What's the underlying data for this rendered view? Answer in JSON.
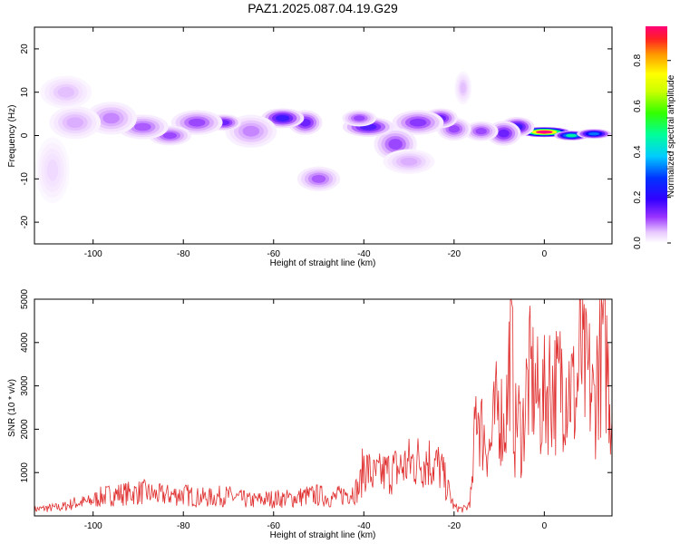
{
  "page_title": "PAZ1.2025.087.04.19.G29",
  "colors": {
    "snr_line": "#e03030",
    "axis": "#000000",
    "colormap": [
      "#ffffff",
      "#f3e0ff",
      "#d9a8ff",
      "#a44dff",
      "#6a1fff",
      "#3018ff",
      "#0000ff",
      "#0066ff",
      "#00d0ff",
      "#00ff80",
      "#33ff00",
      "#ccff00",
      "#ffff00",
      "#ff9900",
      "#ff2020",
      "#ff0080"
    ]
  },
  "chart_data": [
    {
      "type": "heatmap",
      "title": "",
      "xlabel": "Height of straight line (km)",
      "ylabel": "Frequency (Hz)",
      "xlim": [
        -113,
        15
      ],
      "ylim": [
        -25,
        25
      ],
      "x_ticks": [
        -100,
        -80,
        -60,
        -40,
        -20,
        0
      ],
      "x_tick_labels": [
        "-100",
        "-80",
        "-60",
        "-40",
        "-20",
        "0"
      ],
      "y_ticks": [
        -20,
        -10,
        0,
        10,
        20
      ],
      "y_tick_labels": [
        "-20",
        "-10",
        "0",
        "10",
        "20"
      ],
      "colorbar": {
        "label": "Normalized spectral amplitude",
        "range": [
          0.0,
          0.95
        ],
        "ticks": [
          0.0,
          0.2,
          0.4,
          0.6,
          0.8
        ],
        "tick_labels": [
          "0.0",
          "0.2",
          "0.4",
          "0.6",
          "0.8"
        ]
      },
      "blobs": [
        {
          "x": 0,
          "y": 0.8,
          "sx": 3,
          "sy": 0.6,
          "a": 0.95
        },
        {
          "x": 6,
          "y": 0,
          "sx": 2,
          "sy": 0.6,
          "a": 0.55
        },
        {
          "x": 11,
          "y": 0.4,
          "sx": 2,
          "sy": 0.6,
          "a": 0.45
        },
        {
          "x": -6,
          "y": 2,
          "sx": 2,
          "sy": 1.2,
          "a": 0.3
        },
        {
          "x": -9,
          "y": 0.5,
          "sx": 2,
          "sy": 1.5,
          "a": 0.25
        },
        {
          "x": -14,
          "y": 1,
          "sx": 2,
          "sy": 1.2,
          "a": 0.2
        },
        {
          "x": -20,
          "y": 1.5,
          "sx": 2,
          "sy": 1.4,
          "a": 0.2
        },
        {
          "x": -23,
          "y": 4,
          "sx": 2,
          "sy": 1.2,
          "a": 0.25
        },
        {
          "x": -28,
          "y": 3,
          "sx": 3,
          "sy": 1.5,
          "a": 0.22
        },
        {
          "x": -33,
          "y": -2,
          "sx": 2.5,
          "sy": 2,
          "a": 0.2
        },
        {
          "x": -39,
          "y": 2,
          "sx": 3,
          "sy": 1.2,
          "a": 0.28
        },
        {
          "x": -41,
          "y": 4,
          "sx": 2,
          "sy": 1,
          "a": 0.2
        },
        {
          "x": -50,
          "y": -10,
          "sx": 2.5,
          "sy": 1.5,
          "a": 0.18
        },
        {
          "x": -53,
          "y": 3,
          "sx": 2,
          "sy": 1.5,
          "a": 0.25
        },
        {
          "x": -58,
          "y": 4,
          "sx": 2.5,
          "sy": 1.2,
          "a": 0.3
        },
        {
          "x": -65,
          "y": 1,
          "sx": 3,
          "sy": 2,
          "a": 0.15
        },
        {
          "x": -71,
          "y": 3,
          "sx": 2,
          "sy": 1,
          "a": 0.25
        },
        {
          "x": -77,
          "y": 3,
          "sx": 3,
          "sy": 1.5,
          "a": 0.2
        },
        {
          "x": -83,
          "y": 0,
          "sx": 2.5,
          "sy": 1.2,
          "a": 0.2
        },
        {
          "x": -89,
          "y": 2,
          "sx": 3,
          "sy": 1.5,
          "a": 0.18
        },
        {
          "x": -96,
          "y": 4,
          "sx": 3,
          "sy": 2,
          "a": 0.15
        },
        {
          "x": -104,
          "y": 3,
          "sx": 3,
          "sy": 2,
          "a": 0.12
        },
        {
          "x": -106,
          "y": 10,
          "sx": 3,
          "sy": 2,
          "a": 0.1
        },
        {
          "x": -109,
          "y": -8,
          "sx": 2,
          "sy": 4,
          "a": 0.07
        },
        {
          "x": -18,
          "y": 11,
          "sx": 1,
          "sy": 2,
          "a": 0.1
        },
        {
          "x": -30,
          "y": -6,
          "sx": 3,
          "sy": 1.5,
          "a": 0.12
        }
      ]
    },
    {
      "type": "line",
      "title": "",
      "xlabel": "Height of straight line (km)",
      "ylabel": "SNR (10 * v/v)",
      "xlim": [
        -113,
        15
      ],
      "ylim": [
        0,
        5000
      ],
      "x_ticks": [
        -100,
        -80,
        -60,
        -40,
        -20,
        0
      ],
      "x_tick_labels": [
        "-100",
        "-80",
        "-60",
        "-40",
        "-20",
        "0"
      ],
      "y_ticks": [
        1000,
        2000,
        3000,
        4000,
        5000
      ],
      "y_tick_labels": [
        "1000",
        "2000",
        "3000",
        "4000",
        "5000"
      ],
      "series": [
        {
          "x": [
            -113,
            -110,
            -107,
            -104,
            -101,
            -98,
            -95,
            -92,
            -89,
            -86,
            -83,
            -80,
            -77,
            -74,
            -71,
            -68,
            -65,
            -62,
            -59,
            -56,
            -53,
            -50,
            -47,
            -44,
            -41,
            -40,
            -38,
            -35,
            -32,
            -29,
            -26,
            -23,
            -20,
            -18,
            -17,
            -16,
            -15,
            -14,
            -13,
            -12,
            -11,
            -10,
            -9,
            -8,
            -7.5,
            -7,
            -6.5,
            -6,
            -5,
            -4,
            -3,
            -2,
            -1,
            0,
            1,
            2,
            3,
            4,
            5,
            6,
            7,
            8,
            9,
            10,
            11,
            12,
            13,
            14,
            15
          ],
          "y": [
            150,
            180,
            200,
            300,
            320,
            450,
            500,
            520,
            550,
            480,
            480,
            500,
            430,
            420,
            470,
            410,
            350,
            380,
            400,
            400,
            460,
            480,
            400,
            520,
            620,
            1200,
            900,
            1000,
            1100,
            1250,
            1300,
            1100,
            200,
            150,
            200,
            600,
            2800,
            2000,
            1800,
            1500,
            2200,
            2600,
            2000,
            2800,
            4900,
            3200,
            1800,
            2400,
            1800,
            2800,
            3200,
            2900,
            2500,
            2700,
            3100,
            3000,
            2900,
            3300,
            3100,
            3000,
            2600,
            3800,
            3200,
            3100,
            2500,
            3600,
            4200,
            3500,
            2200
          ]
        }
      ]
    }
  ]
}
